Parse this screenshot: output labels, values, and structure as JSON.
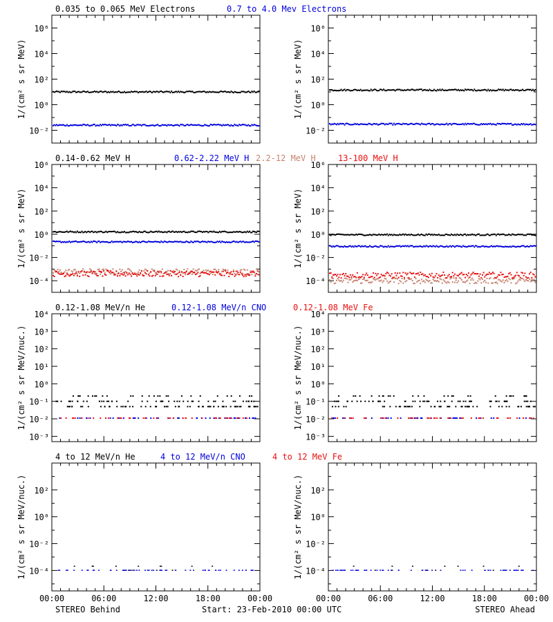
{
  "colors": {
    "black": "#000000",
    "blue": "#0000dd",
    "tan": "#c8826e",
    "red": "#e81010"
  },
  "footer": {
    "left": "STEREO Behind",
    "center": "Start: 23-Feb-2010 00:00 UTC",
    "right": "STEREO Ahead"
  },
  "row_titles": [
    [
      {
        "text": "0.035 to 0.065 MeV Electrons",
        "color": "black"
      },
      {
        "text": "0.7 to 4.0 Mev Electrons",
        "color": "blue"
      }
    ],
    [
      {
        "text": "0.14-0.62 MeV H",
        "color": "black"
      },
      {
        "text": "0.62-2.22 MeV H",
        "color": "blue"
      },
      {
        "text": "2.2-12 MeV H",
        "color": "tan"
      },
      {
        "text": "13-100 MeV H",
        "color": "red"
      }
    ],
    [
      {
        "text": "0.12-1.08 MeV/n He",
        "color": "black"
      },
      {
        "text": "0.12-1.08 MeV/n CNO",
        "color": "blue"
      },
      {
        "text": "0.12-1.08 MeV Fe",
        "color": "red"
      }
    ],
    [
      {
        "text": "4 to 12 MeV/n He",
        "color": "black"
      },
      {
        "text": "4 to 12 MeV/n CNO",
        "color": "blue"
      },
      {
        "text": "4 to 12 MeV Fe",
        "color": "red"
      }
    ]
  ],
  "chart_data": [
    {
      "type": "scatter",
      "panel": "row1-behind",
      "ylabel": "1/(cm² s sr MeV)",
      "yscale": "log",
      "ylim": [
        0.001,
        10000000
      ],
      "yticks": [
        "10⁻²",
        "10⁰",
        "10²",
        "10⁴",
        "10⁶"
      ],
      "xlim": [
        "00:00",
        "24:00"
      ],
      "xticks": [
        "00:00",
        "06:00",
        "12:00",
        "18:00",
        "00:00"
      ],
      "series": [
        {
          "color": "black",
          "level": 10
        },
        {
          "color": "blue",
          "level": 0.025
        }
      ]
    },
    {
      "type": "scatter",
      "panel": "row1-ahead",
      "ylabel": "1/(cm² s sr MeV)",
      "yscale": "log",
      "ylim": [
        0.001,
        10000000
      ],
      "yticks": [
        "10⁻²",
        "10⁰",
        "10²",
        "10⁴",
        "10⁶"
      ],
      "xlim": [
        "00:00",
        "24:00"
      ],
      "xticks": [
        "00:00",
        "06:00",
        "12:00",
        "18:00",
        "00:00"
      ],
      "series": [
        {
          "color": "black",
          "level": 14
        },
        {
          "color": "blue",
          "level": 0.03
        }
      ]
    },
    {
      "type": "scatter",
      "panel": "row2-behind",
      "ylabel": "1/(cm² s sr MeV)",
      "yscale": "log",
      "ylim": [
        1e-05,
        1000000
      ],
      "yticks": [
        "10⁻⁴",
        "10⁻²",
        "10⁰",
        "10²",
        "10⁴",
        "10⁶"
      ],
      "xlim": [
        "00:00",
        "24:00"
      ],
      "xticks": [
        "00:00",
        "06:00",
        "12:00",
        "18:00",
        "00:00"
      ],
      "series": [
        {
          "color": "black",
          "level": 1.6
        },
        {
          "color": "blue",
          "level": 0.22
        },
        {
          "color": "tan",
          "level": 0.0006
        },
        {
          "color": "red",
          "level": 0.0004
        }
      ]
    },
    {
      "type": "scatter",
      "panel": "row2-ahead",
      "ylabel": "1/(cm² s sr MeV)",
      "yscale": "log",
      "ylim": [
        1e-05,
        1000000
      ],
      "yticks": [
        "10⁻⁴",
        "10⁻²",
        "10⁰",
        "10²",
        "10⁴",
        "10⁶"
      ],
      "xlim": [
        "00:00",
        "24:00"
      ],
      "xticks": [
        "00:00",
        "06:00",
        "12:00",
        "18:00",
        "00:00"
      ],
      "series": [
        {
          "color": "black",
          "level": 0.9
        },
        {
          "color": "blue",
          "level": 0.09
        },
        {
          "color": "tan",
          "level": 0.0001
        },
        {
          "color": "red",
          "level": 0.0003
        }
      ]
    },
    {
      "type": "scatter",
      "panel": "row3-behind",
      "ylabel": "1/(cm² s sr MeV/nuc.)",
      "yscale": "log",
      "ylim": [
        0.0005,
        10000
      ],
      "yticks": [
        "10⁻³",
        "10⁻²",
        "10⁻¹",
        "10⁰",
        "10¹",
        "10²",
        "10³",
        "10⁴"
      ],
      "xlim": [
        "00:00",
        "24:00"
      ],
      "xticks": [
        "00:00",
        "06:00",
        "12:00",
        "18:00",
        "00:00"
      ],
      "series": [
        {
          "color": "black",
          "level": 0.1
        },
        {
          "color": "blue",
          "level": 0.011
        },
        {
          "color": "red",
          "level": 0.011
        }
      ]
    },
    {
      "type": "scatter",
      "panel": "row3-ahead",
      "ylabel": "1/(cm² s sr MeV/nuc.)",
      "yscale": "log",
      "ylim": [
        0.0005,
        10000
      ],
      "yticks": [
        "10⁻³",
        "10⁻²",
        "10⁻¹",
        "10⁰",
        "10¹",
        "10²",
        "10³",
        "10⁴"
      ],
      "xlim": [
        "00:00",
        "24:00"
      ],
      "xticks": [
        "00:00",
        "06:00",
        "12:00",
        "18:00",
        "00:00"
      ],
      "series": [
        {
          "color": "black",
          "level": 0.08
        },
        {
          "color": "blue",
          "level": 0.011
        },
        {
          "color": "red",
          "level": 0.011
        }
      ]
    },
    {
      "type": "scatter",
      "panel": "row4-behind",
      "ylabel": "1/(cm² s sr MeV/nuc.)",
      "yscale": "log",
      "ylim": [
        3e-06,
        10000
      ],
      "yticks": [
        "10⁻⁴",
        "10⁻²",
        "10⁰",
        "10²"
      ],
      "xlim": [
        "00:00",
        "24:00"
      ],
      "xticks": [
        "00:00",
        "06:00",
        "12:00",
        "18:00",
        "00:00"
      ],
      "series": [
        {
          "color": "black",
          "level": 0.0001
        },
        {
          "color": "blue",
          "level": 0.0001
        }
      ]
    },
    {
      "type": "scatter",
      "panel": "row4-ahead",
      "ylabel": "1/(cm² s sr MeV/nuc.)",
      "yscale": "log",
      "ylim": [
        3e-06,
        10000
      ],
      "yticks": [
        "10⁻⁴",
        "10⁻²",
        "10⁰",
        "10²"
      ],
      "xlim": [
        "00:00",
        "24:00"
      ],
      "xticks": [
        "00:00",
        "06:00",
        "12:00",
        "18:00",
        "00:00"
      ],
      "series": [
        {
          "color": "black",
          "level": 0.0001
        },
        {
          "color": "blue",
          "level": 0.0001
        }
      ]
    }
  ]
}
